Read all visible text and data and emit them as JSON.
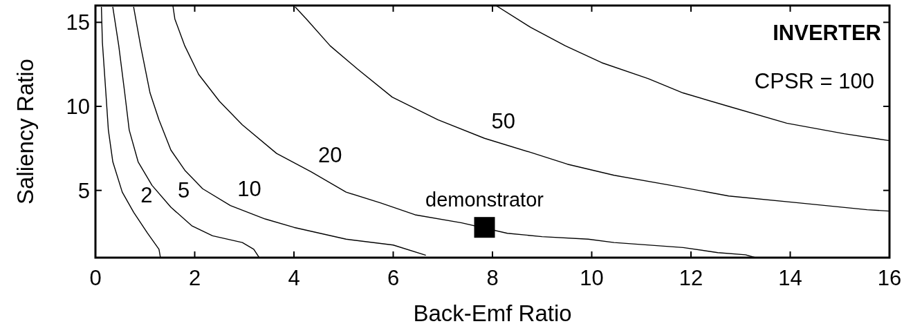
{
  "chart_data": {
    "type": "line",
    "title": "INVERTER",
    "xlabel": "Back-Emf Ratio",
    "ylabel": "Saliency Ratio",
    "xlim": [
      0,
      16
    ],
    "ylim": [
      1,
      16
    ],
    "xticks": [
      0,
      2,
      4,
      6,
      8,
      10,
      12,
      14,
      16
    ],
    "yticks": [
      5,
      10,
      15
    ],
    "grid": false,
    "marker": "none",
    "series": [
      {
        "color": "#000000",
        "x": [
          0.12,
          0.14,
          0.21,
          0.26,
          0.35,
          0.54,
          0.77,
          1.05,
          1.28,
          1.31
        ],
        "values": [
          15.9,
          13.8,
          10.8,
          8.6,
          6.7,
          4.9,
          3.7,
          2.45,
          1.5,
          1.0
        ]
      },
      {
        "color": "#000000",
        "x": [
          0.35,
          0.47,
          0.59,
          0.68,
          0.86,
          1.14,
          1.52,
          1.94,
          2.36,
          2.96,
          3.19,
          3.3
        ],
        "values": [
          15.9,
          13.6,
          10.8,
          8.6,
          6.7,
          5.3,
          4.0,
          2.9,
          2.3,
          1.9,
          1.5,
          1.0
        ]
      },
      {
        "color": "#000000",
        "x": [
          0.77,
          0.91,
          1.1,
          1.28,
          1.52,
          1.8,
          2.16,
          2.72,
          3.42,
          4.0,
          5.05,
          6.0,
          6.65
        ],
        "values": [
          15.9,
          13.6,
          10.8,
          9.2,
          7.4,
          6.2,
          5.1,
          4.1,
          3.3,
          2.8,
          2.1,
          1.75,
          1.15
        ]
      },
      {
        "color": "#000000",
        "x": [
          1.56,
          1.6,
          1.8,
          2.08,
          2.5,
          2.96,
          3.65,
          4.35,
          5.05,
          5.75,
          6.44,
          7.38,
          8.3,
          9.0,
          9.93,
          10.45,
          11.84,
          12.54,
          13.1,
          13.3
        ],
        "values": [
          16,
          15.2,
          13.6,
          11.9,
          10.3,
          8.9,
          7.2,
          6.1,
          4.9,
          4.25,
          3.55,
          3.07,
          2.45,
          2.25,
          2.1,
          1.9,
          1.6,
          1.3,
          1.17,
          1.0
        ]
      },
      {
        "color": "#000000",
        "x": [
          4.03,
          4.25,
          4.73,
          5.29,
          5.98,
          6.9,
          7.84,
          8.77,
          9.51,
          10.45,
          11.6,
          12.76,
          14.16,
          15.55,
          16
        ],
        "values": [
          15.9,
          15.2,
          13.6,
          12.2,
          10.55,
          9.2,
          8.1,
          7.26,
          6.56,
          5.9,
          5.3,
          4.67,
          4.26,
          3.85,
          3.77
        ]
      },
      {
        "color": "#000000",
        "x": [
          8.07,
          8.77,
          9.47,
          10.2,
          11.14,
          11.84,
          12.76,
          13.93,
          15.09,
          16
        ],
        "values": [
          16,
          14.7,
          13.6,
          12.6,
          11.65,
          10.8,
          10.0,
          9.0,
          8.37,
          7.96
        ]
      },
      {
        "type": "scatter",
        "name": "demonstrator",
        "marker": "square",
        "color": "#000000",
        "x": [
          7.84
        ],
        "values": [
          2.8
        ]
      }
    ],
    "annotations": [
      "CPSR = 100",
      {
        "text": "2",
        "x": 0.77,
        "y": 3.7
      },
      {
        "text": "5",
        "x": 1.52,
        "y": 4.0
      },
      {
        "text": "10",
        "x": 2.72,
        "y": 4.1
      },
      {
        "text": "20",
        "x": 4.35,
        "y": 6.1
      },
      {
        "text": "50",
        "x": 7.84,
        "y": 8.1
      }
    ]
  }
}
